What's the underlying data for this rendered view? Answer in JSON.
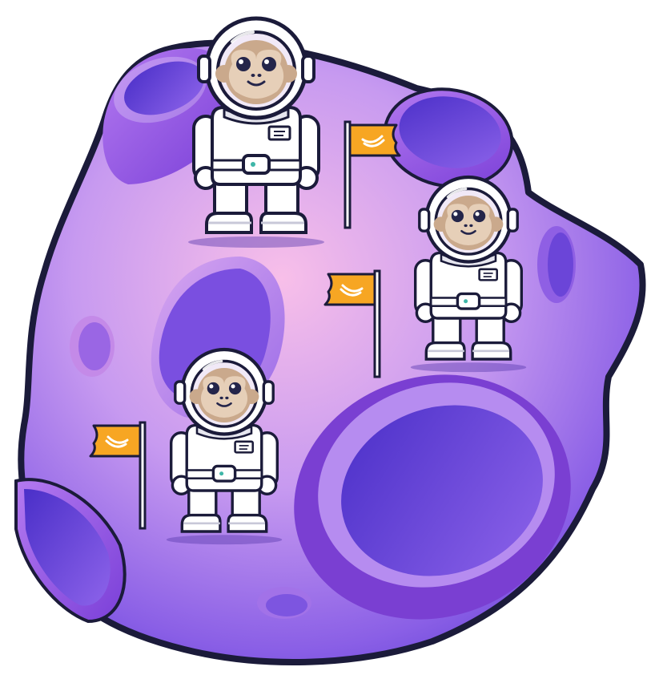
{
  "scene": {
    "subject": "planet-with-astronaut-monkeys",
    "colors": {
      "outline": "#1b1b3a",
      "planet_light": "#f6b6e6",
      "planet_mid": "#b487f2",
      "planet_dark": "#6a43d8",
      "crater_rim": "#9b5ce8",
      "crater_inner": "#5b3bd6",
      "suit": "#ffffff",
      "suit_shadow": "#d9d9e6",
      "monkey_fur": "#caa98c",
      "monkey_face": "#e8d2bb",
      "visor": "#f2ebf7",
      "flag": "#f7a623",
      "flag_pole": "#ffffff",
      "belt_buckle": "#3fb6a8"
    },
    "icons": [
      "banana-flag-icon",
      "astronaut-monkey-icon",
      "crater-icon"
    ],
    "astronauts": [
      {
        "id": "top-left"
      },
      {
        "id": "right"
      },
      {
        "id": "bottom-left"
      }
    ],
    "flags": [
      {
        "id": "top-center"
      },
      {
        "id": "middle"
      },
      {
        "id": "left"
      }
    ]
  }
}
